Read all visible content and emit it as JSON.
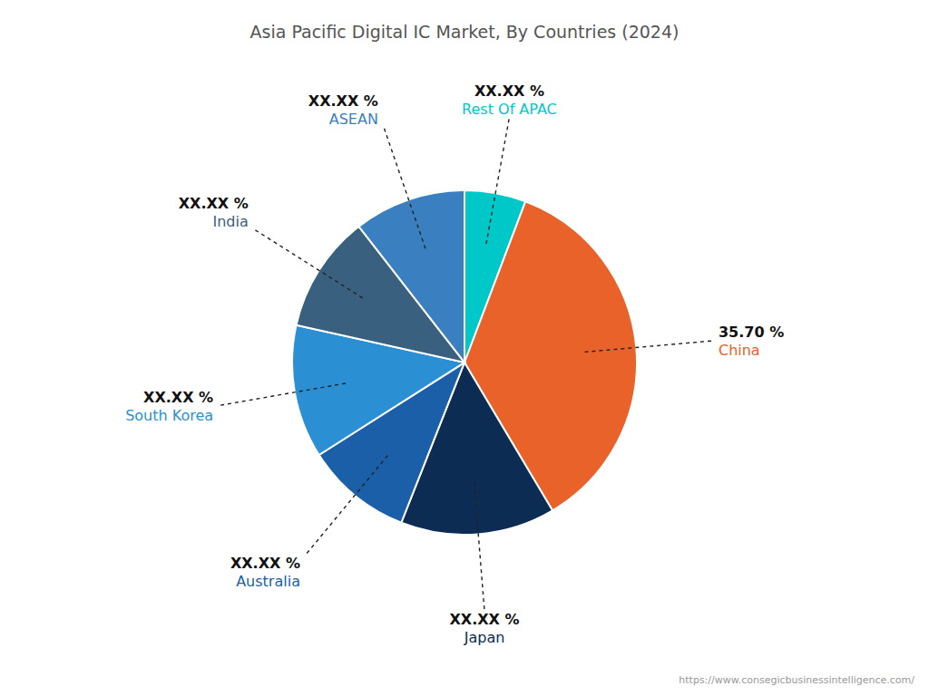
{
  "chart_data": {
    "type": "pie",
    "title": "Asia Pacific Digital IC Market, By Countries (2024)",
    "categories": [
      "Rest Of APAC",
      "China",
      "Japan",
      "Australia",
      "South Korea",
      "India",
      "ASEAN"
    ],
    "values": [
      5.75,
      35.7,
      14.5,
      10.0,
      12.5,
      11.0,
      10.5
    ],
    "value_labels": [
      "XX.XX %",
      "35.70 %",
      "XX.XX %",
      "XX.XX %",
      "XX.XX %",
      "XX.XX %",
      "XX.XX %"
    ],
    "colors": [
      "#00C8C8",
      "#E8622A",
      "#0D2C54",
      "#1A5FA8",
      "#2B8FD4",
      "#3A6080",
      "#3A80C0"
    ],
    "data_labels": true,
    "annotations": [
      "https://www.consegicbusinessintelligence.com/"
    ]
  }
}
